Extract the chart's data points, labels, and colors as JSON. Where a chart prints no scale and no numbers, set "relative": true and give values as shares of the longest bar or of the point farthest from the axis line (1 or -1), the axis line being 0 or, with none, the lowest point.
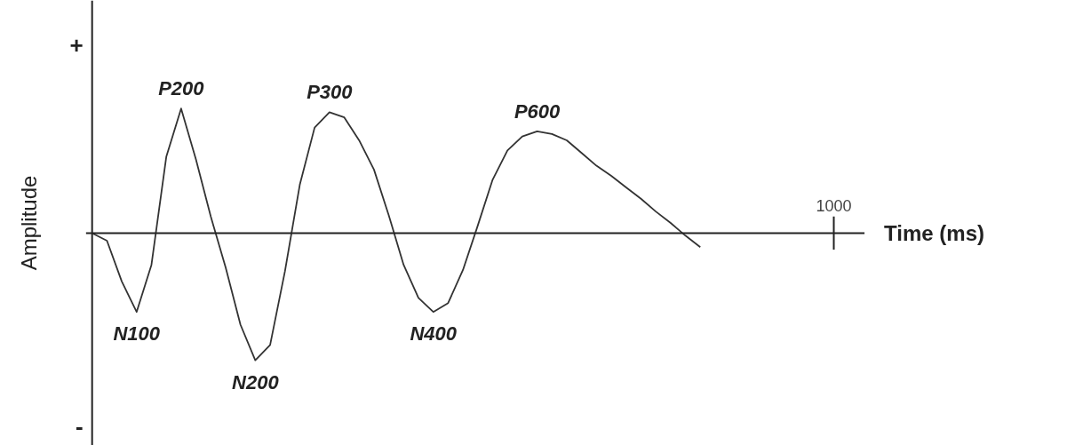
{
  "chart_data": {
    "type": "line",
    "relative": true,
    "ylabel": "Amplitude",
    "grid": false,
    "marker": "none",
    "line_style": "solid",
    "categories": [
      null,
      null,
      null,
      null,
      null,
      null,
      null,
      null,
      null,
      null,
      null,
      null,
      null,
      null,
      null,
      null,
      null,
      null,
      null,
      null,
      null,
      null,
      null,
      null,
      null,
      null,
      null,
      null,
      null,
      null,
      null,
      null,
      null,
      null,
      null,
      null,
      null,
      null,
      null,
      null,
      null,
      null
    ],
    "series": [
      {
        "color": "#333333",
        "values": [
          0,
          -0.06,
          -0.38,
          -0.62,
          -0.25,
          0.6,
          0.98,
          0.58,
          0.13,
          -0.27,
          -0.72,
          -1,
          -0.88,
          -0.3,
          0.38,
          0.83,
          0.95,
          0.91,
          0.73,
          0.5,
          0.14,
          -0.25,
          -0.51,
          -0.62,
          -0.55,
          -0.29,
          0.06,
          0.42,
          0.65,
          0.76,
          0.8,
          0.78,
          0.73,
          0.63,
          0.53,
          0.45,
          0.36,
          0.27,
          0.17,
          0.08,
          -0.02,
          -0.11
        ]
      }
    ],
    "annotations": [
      "+",
      "-",
      "1000",
      "Time (ms)",
      "N100",
      "P200",
      "N200",
      "P300",
      "N400",
      "P600"
    ]
  }
}
